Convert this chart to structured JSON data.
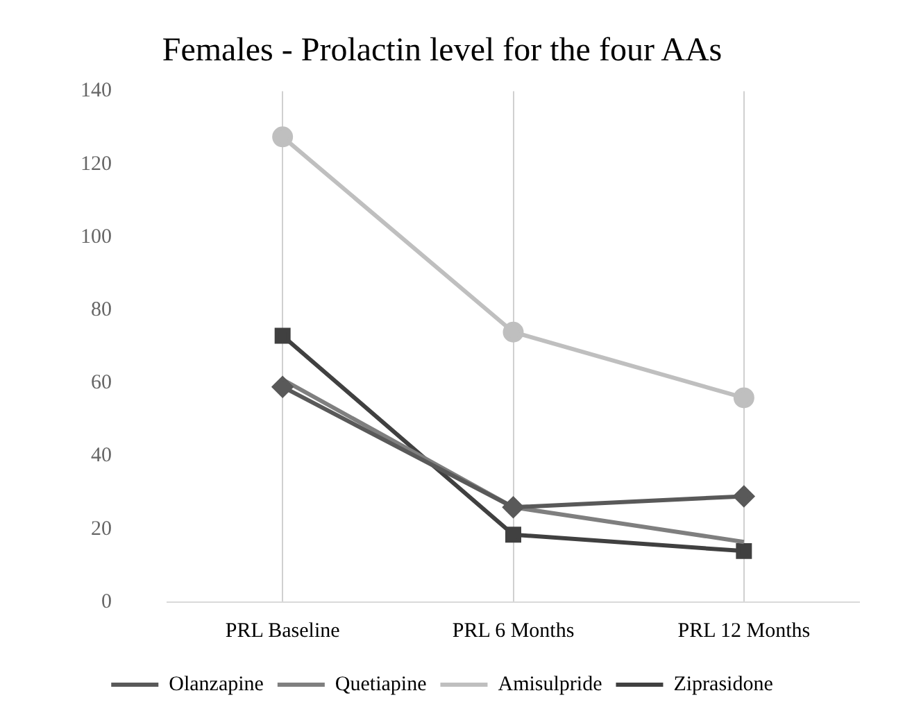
{
  "chart_data": {
    "type": "line",
    "title": "Females - Prolactin level for the four AAs",
    "categories": [
      "PRL Baseline",
      "PRL 6 Months",
      "PRL 12 Months"
    ],
    "series": [
      {
        "name": "Olanzapine",
        "color": "#595959",
        "values": [
          59,
          26,
          29
        ],
        "marker": "diamond"
      },
      {
        "name": "Quetiapine",
        "color": "#7f7f7f",
        "values": [
          61,
          26,
          16.5
        ],
        "marker": "none"
      },
      {
        "name": "Amisulpride",
        "color": "#bfbfbf",
        "values": [
          127.5,
          74,
          56
        ],
        "marker": "circle"
      },
      {
        "name": "Ziprasidone",
        "color": "#404040",
        "values": [
          73,
          18.5,
          14
        ],
        "marker": "square"
      }
    ],
    "ylim": [
      0,
      140
    ],
    "yticks": [
      0,
      20,
      40,
      60,
      80,
      100,
      120,
      140
    ],
    "grid": "x",
    "legend": "bottom"
  }
}
